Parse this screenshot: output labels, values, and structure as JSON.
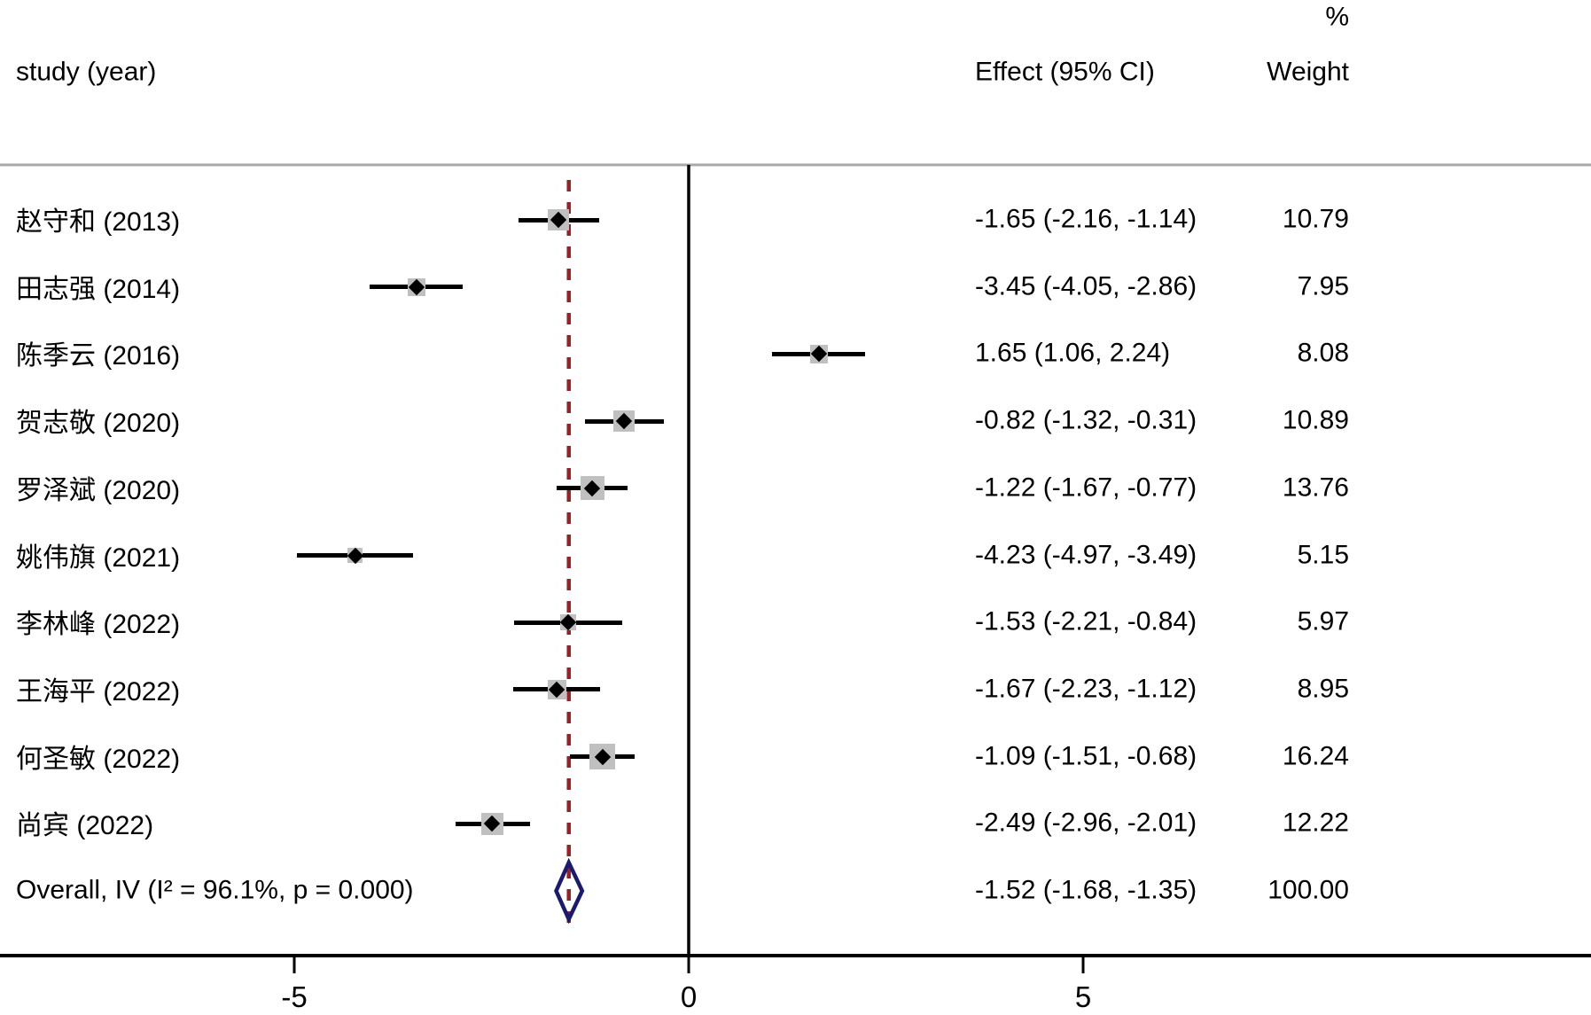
{
  "header": {
    "study_col": "study (year)",
    "effect_col": "Effect (95% CI)",
    "weight_col": "Weight",
    "percent_label": "%"
  },
  "chart_data": {
    "type": "forest",
    "title": "",
    "xlabel": "",
    "x_axis": {
      "ticks": [
        "-5",
        "0",
        "5"
      ],
      "tick_values": [
        -5,
        0,
        5
      ],
      "xlim": [
        -8.7,
        11.4
      ],
      "reference_line": 0,
      "grid": false
    },
    "studies": [
      {
        "name": "赵守和 (2013)",
        "effect": -1.65,
        "ci_low": -2.16,
        "ci_high": -1.14,
        "weight": 10.79,
        "effect_label": "-1.65 (-2.16, -1.14)",
        "weight_label": "10.79"
      },
      {
        "name": "田志强 (2014)",
        "effect": -3.45,
        "ci_low": -4.05,
        "ci_high": -2.86,
        "weight": 7.95,
        "effect_label": "-3.45 (-4.05, -2.86)",
        "weight_label": "7.95"
      },
      {
        "name": "陈季云 (2016)",
        "effect": 1.65,
        "ci_low": 1.06,
        "ci_high": 2.24,
        "weight": 8.08,
        "effect_label": "1.65 (1.06, 2.24)",
        "weight_label": "8.08"
      },
      {
        "name": "贺志敬 (2020)",
        "effect": -0.82,
        "ci_low": -1.32,
        "ci_high": -0.31,
        "weight": 10.89,
        "effect_label": "-0.82 (-1.32, -0.31)",
        "weight_label": "10.89"
      },
      {
        "name": "罗泽斌 (2020)",
        "effect": -1.22,
        "ci_low": -1.67,
        "ci_high": -0.77,
        "weight": 13.76,
        "effect_label": "-1.22 (-1.67, -0.77)",
        "weight_label": "13.76"
      },
      {
        "name": "姚伟旗 (2021)",
        "effect": -4.23,
        "ci_low": -4.97,
        "ci_high": -3.49,
        "weight": 5.15,
        "effect_label": "-4.23 (-4.97, -3.49)",
        "weight_label": "5.15"
      },
      {
        "name": "李林峰 (2022)",
        "effect": -1.53,
        "ci_low": -2.21,
        "ci_high": -0.84,
        "weight": 5.97,
        "effect_label": "-1.53 (-2.21, -0.84)",
        "weight_label": "5.97"
      },
      {
        "name": "王海平 (2022)",
        "effect": -1.67,
        "ci_low": -2.23,
        "ci_high": -1.12,
        "weight": 8.95,
        "effect_label": "-1.67 (-2.23, -1.12)",
        "weight_label": "8.95"
      },
      {
        "name": "何圣敏 (2022)",
        "effect": -1.09,
        "ci_low": -1.51,
        "ci_high": -0.68,
        "weight": 16.24,
        "effect_label": "-1.09 (-1.51, -0.68)",
        "weight_label": "16.24"
      },
      {
        "name": "尚宾 (2022)",
        "effect": -2.49,
        "ci_low": -2.96,
        "ci_high": -2.01,
        "weight": 12.22,
        "effect_label": "-2.49 (-2.96, -2.01)",
        "weight_label": "12.22"
      }
    ],
    "overall": {
      "name": "Overall, IV (I² = 96.1%, p = 0.000)",
      "effect": -1.52,
      "ci_low": -1.68,
      "ci_high": -1.35,
      "effect_label": "-1.52 (-1.68, -1.35)",
      "weight_label": "100.00",
      "heterogeneity_i2": "96.1%",
      "p_value": "0.000"
    },
    "legend_position": "none",
    "colors": {
      "marker_box": "#c0c0c0",
      "marker_point": "#000000",
      "ci_line": "#000000",
      "overall_dashed_line": "#962227",
      "overall_diamond": "#1a1a70",
      "separator_line": "#a9a9a9",
      "axis_line": "#000000"
    }
  }
}
